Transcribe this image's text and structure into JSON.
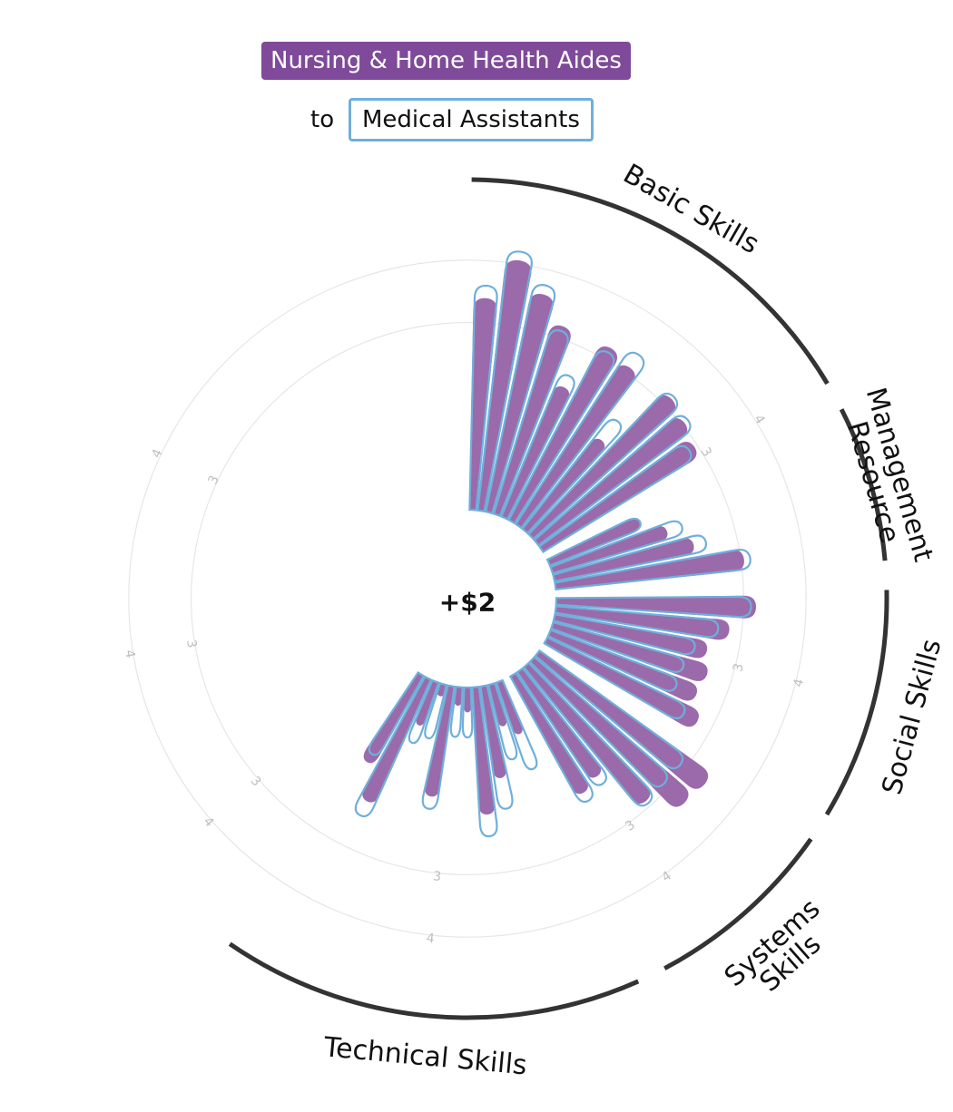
{
  "header": {
    "from_label": "Nursing & Home Health Aides",
    "to_word": "to",
    "to_label": "Medical Assistants"
  },
  "center_label": "+$2",
  "colors": {
    "from_fill": "#9b6aaa",
    "from_stroke": "#3d4aa0",
    "to_stroke": "#6fafdb",
    "group_arc": "#333333",
    "grid": "#e6e6e6",
    "tick_text": "#bfbfbf"
  },
  "chart_data": {
    "type": "radial-bar",
    "value_domain": [
      0,
      5
    ],
    "grid_levels": [
      3,
      4
    ],
    "groups": [
      {
        "name": "Basic Skills",
        "label_lines": [
          "Basic Skills"
        ]
      },
      {
        "name": "Resource Management",
        "label_lines": [
          "Resource",
          "Management"
        ]
      },
      {
        "name": "Social Skills",
        "label_lines": [
          "Social Skills"
        ]
      },
      {
        "name": "Systems Skills",
        "label_lines": [
          "Systems",
          "Skills"
        ]
      },
      {
        "name": "Technical Skills",
        "label_lines": [
          "Technical Skills"
        ]
      }
    ],
    "series": [
      {
        "name": "Nursing & Home Health Aides",
        "style": "filled"
      },
      {
        "name": "Medical Assistants",
        "style": "outline"
      }
    ],
    "bars": [
      {
        "group": "Basic Skills",
        "from": 3.4,
        "to": 3.6
      },
      {
        "group": "Basic Skills",
        "from": 4.06,
        "to": 4.2
      },
      {
        "group": "Basic Skills",
        "from": 3.6,
        "to": 3.75
      },
      {
        "group": "Basic Skills",
        "from": 3.2,
        "to": 3.12
      },
      {
        "group": "Basic Skills",
        "from": 2.3,
        "to": 2.5
      },
      {
        "group": "Basic Skills",
        "from": 3.2,
        "to": 3.12
      },
      {
        "group": "Basic Skills",
        "from": 3.1,
        "to": 3.35
      },
      {
        "group": "Basic Skills",
        "from": 1.9,
        "to": 2.3
      },
      {
        "group": "Basic Skills",
        "from": 3.15,
        "to": 3.2
      },
      {
        "group": "Basic Skills",
        "from": 3.05,
        "to": 3.12
      },
      {
        "group": "Basic Skills",
        "from": 2.95,
        "to": 2.85
      },
      {
        "group": "Resource Management",
        "from": 1.6,
        "to": 1.6
      },
      {
        "group": "Resource Management",
        "from": 1.95,
        "to": 2.2
      },
      {
        "group": "Resource Management",
        "from": 2.3,
        "to": 2.5
      },
      {
        "group": "Resource Management",
        "from": 3.05,
        "to": 3.15
      },
      {
        "group": "Social Skills",
        "from": 3.2,
        "to": 3.12
      },
      {
        "group": "Social Skills",
        "from": 2.8,
        "to": 2.62
      },
      {
        "group": "Social Skills",
        "from": 2.5,
        "to": 2.3
      },
      {
        "group": "Social Skills",
        "from": 2.6,
        "to": 2.2
      },
      {
        "group": "Social Skills",
        "from": 2.55,
        "to": 2.2
      },
      {
        "group": "Social Skills",
        "from": 2.75,
        "to": 2.5
      },
      {
        "group": "Systems Skills",
        "from": 3.4,
        "to": 2.9
      },
      {
        "group": "Systems Skills",
        "from": 3.35,
        "to": 2.9
      },
      {
        "group": "Systems Skills",
        "from": 2.9,
        "to": 2.95
      },
      {
        "group": "Systems Skills",
        "from": 2.1,
        "to": 2.25
      },
      {
        "group": "Systems Skills",
        "from": 2.2,
        "to": 2.35
      },
      {
        "group": "Technical Skills",
        "from": 0.9,
        "to": 1.5
      },
      {
        "group": "Technical Skills",
        "from": 0.7,
        "to": 1.25
      },
      {
        "group": "Technical Skills",
        "from": 1.5,
        "to": 2.0
      },
      {
        "group": "Technical Skills",
        "from": 2.05,
        "to": 2.4
      },
      {
        "group": "Technical Skills",
        "from": 0.4,
        "to": 0.8
      },
      {
        "group": "Technical Skills",
        "from": 0.3,
        "to": 0.8
      },
      {
        "group": "Technical Skills",
        "from": 1.8,
        "to": 2.0
      },
      {
        "group": "Technical Skills",
        "from": 0.2,
        "to": 0.9
      },
      {
        "group": "Technical Skills",
        "from": 0.75,
        "to": 1.05
      },
      {
        "group": "Technical Skills",
        "from": 2.2,
        "to": 2.45
      },
      {
        "group": "Technical Skills",
        "from": 1.65,
        "to": 1.5
      }
    ]
  }
}
